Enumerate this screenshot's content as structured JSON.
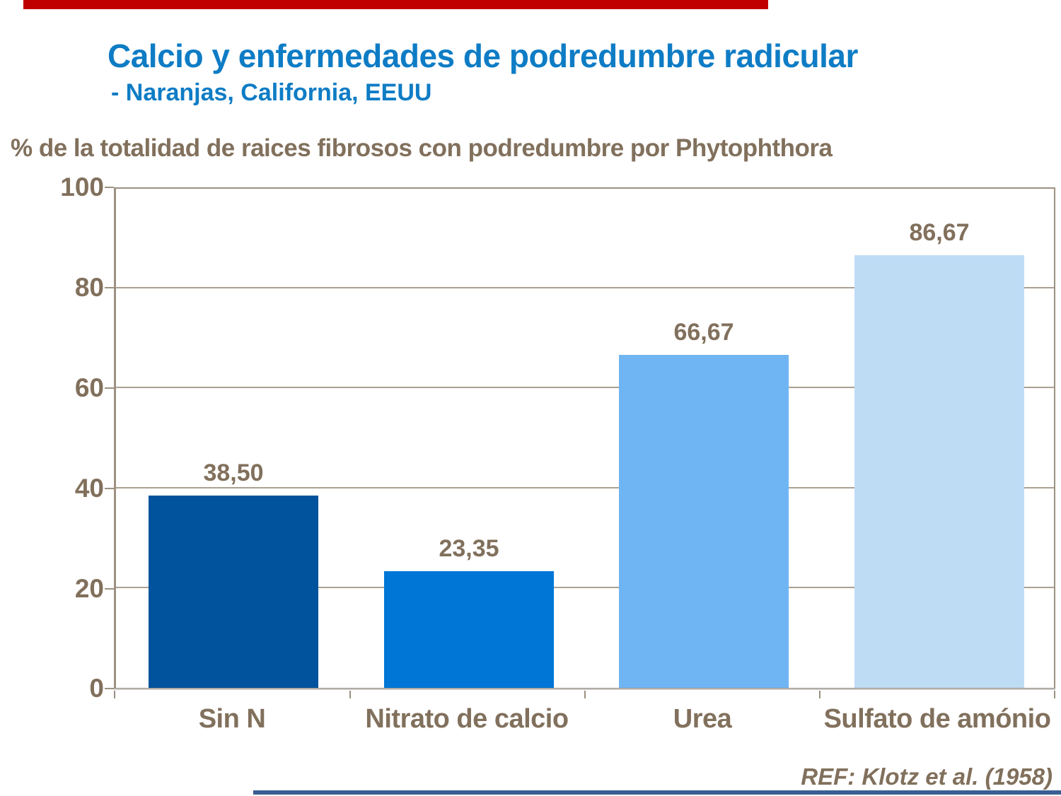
{
  "slide": {
    "title": "Calcio y enfermedades de podredumbre radicular",
    "subtitle": "- Naranjas, California, EEUU",
    "reference": "REF: Klotz et al. (1958)",
    "colors": {
      "title_blue": "#0E7CC5",
      "text_brown": "#81705C",
      "top_rule_red": "#C00000",
      "bottom_rule_blue": "#3A5F92",
      "plot_frame": "#9C9181",
      "gridline": "#ABA192"
    }
  },
  "chart_data": {
    "type": "bar",
    "title": "% de la totalidad de raices fibrosos con podredumbre por Phytophthora",
    "ylabel": "% de la totalidad de raices fibrosos con podredumbre por Phytophthora",
    "xlabel": "",
    "categories": [
      "Sin N",
      "Nitrato de calcio",
      "Urea",
      "Sulfato de amónio"
    ],
    "values": [
      38.5,
      23.35,
      66.67,
      86.67
    ],
    "value_labels": [
      "38,50",
      "23,35",
      "66,67",
      "86,67"
    ],
    "bar_colors": [
      "#00539C",
      "#0077D6",
      "#6FB5F3",
      "#BFDCF5"
    ],
    "ylim": [
      0,
      100
    ],
    "yticks": [
      "100",
      "80",
      "60",
      "40",
      "20",
      "0"
    ],
    "grid": true,
    "legend": false,
    "source": "REF: Klotz et al. (1958)"
  }
}
